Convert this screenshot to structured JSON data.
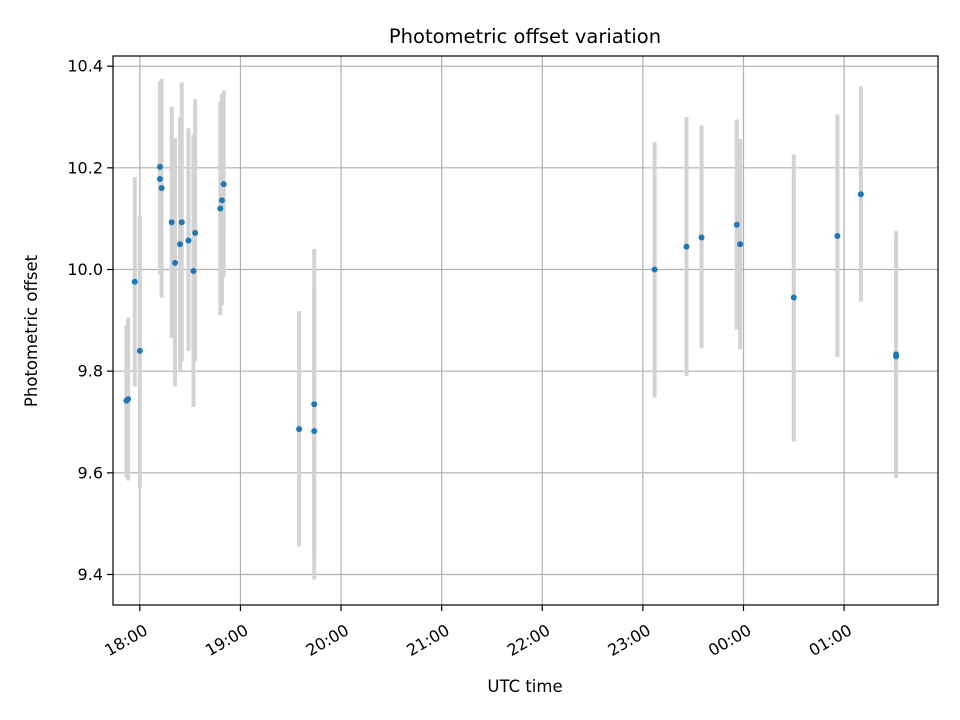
{
  "chart_data": {
    "type": "scatter",
    "title": "Photometric offset variation",
    "xlabel": "UTC time",
    "ylabel": "Photometric offset",
    "x_axis": {
      "kind": "time",
      "min": "17:44",
      "max": "01:56",
      "tick_labels": [
        "18:00",
        "19:00",
        "20:00",
        "21:00",
        "22:00",
        "23:00",
        "00:00",
        "01:00"
      ],
      "tick_label_rotation": "30 degrees"
    },
    "y_axis": {
      "min": 9.34,
      "max": 10.42,
      "ticks": [
        9.4,
        9.6,
        9.8,
        10.0,
        10.2,
        10.4
      ],
      "tick_labels": [
        "9.4",
        "9.6",
        "9.8",
        "10.0",
        "10.2",
        "10.4"
      ]
    },
    "grid": true,
    "legend": "none",
    "colors": {
      "point": "#1f77b4",
      "errorbar": "#d3d3d3",
      "grid": "#b0b0b0",
      "axis": "#000000"
    },
    "points": [
      {
        "x": "17:52",
        "y": 9.742,
        "err_low": 9.59,
        "err_high": 9.89
      },
      {
        "x": "17:53",
        "y": 9.745,
        "err_low": 9.585,
        "err_high": 9.905
      },
      {
        "x": "17:57",
        "y": 9.976,
        "err_low": 9.77,
        "err_high": 10.182
      },
      {
        "x": "18:00",
        "y": 9.84,
        "err_low": 9.57,
        "err_high": 10.105
      },
      {
        "x": "18:12",
        "y": 10.202,
        "err_low": 10.03,
        "err_high": 10.37
      },
      {
        "x": "18:12",
        "y": 10.178,
        "err_low": 9.99,
        "err_high": 10.37
      },
      {
        "x": "18:13",
        "y": 10.16,
        "err_low": 9.945,
        "err_high": 10.375
      },
      {
        "x": "18:19",
        "y": 10.093,
        "err_low": 9.865,
        "err_high": 10.32
      },
      {
        "x": "18:21",
        "y": 10.013,
        "err_low": 9.77,
        "err_high": 10.258
      },
      {
        "x": "18:24",
        "y": 10.05,
        "err_low": 9.8,
        "err_high": 10.3
      },
      {
        "x": "18:25",
        "y": 10.093,
        "err_low": 9.82,
        "err_high": 10.368
      },
      {
        "x": "18:29",
        "y": 10.057,
        "err_low": 9.84,
        "err_high": 10.278
      },
      {
        "x": "18:32",
        "y": 9.997,
        "err_low": 9.73,
        "err_high": 10.265
      },
      {
        "x": "18:33",
        "y": 10.072,
        "err_low": 9.82,
        "err_high": 10.335
      },
      {
        "x": "18:48",
        "y": 10.12,
        "err_low": 9.91,
        "err_high": 10.33
      },
      {
        "x": "18:49",
        "y": 10.136,
        "err_low": 9.93,
        "err_high": 10.345
      },
      {
        "x": "18:50",
        "y": 10.168,
        "err_low": 9.985,
        "err_high": 10.352
      },
      {
        "x": "19:35",
        "y": 9.686,
        "err_low": 9.455,
        "err_high": 9.918
      },
      {
        "x": "19:44",
        "y": 9.735,
        "err_low": 9.43,
        "err_high": 10.04
      },
      {
        "x": "19:44",
        "y": 9.682,
        "err_low": 9.39,
        "err_high": 9.97
      },
      {
        "x": "23:07",
        "y": 10.0,
        "err_low": 9.748,
        "err_high": 10.25
      },
      {
        "x": "23:26",
        "y": 10.045,
        "err_low": 9.79,
        "err_high": 10.3
      },
      {
        "x": "23:35",
        "y": 10.063,
        "err_low": 9.845,
        "err_high": 10.283
      },
      {
        "x": "23:56",
        "y": 10.088,
        "err_low": 9.882,
        "err_high": 10.295
      },
      {
        "x": "23:58",
        "y": 10.05,
        "err_low": 9.843,
        "err_high": 10.257
      },
      {
        "x": "00:30",
        "y": 9.945,
        "err_low": 9.662,
        "err_high": 10.226
      },
      {
        "x": "00:56",
        "y": 10.066,
        "err_low": 9.828,
        "err_high": 10.305
      },
      {
        "x": "01:10",
        "y": 10.148,
        "err_low": 9.937,
        "err_high": 10.36
      },
      {
        "x": "01:31",
        "y": 9.833,
        "err_low": 9.59,
        "err_high": 10.076
      },
      {
        "x": "01:31",
        "y": 9.829,
        "err_low": 9.59,
        "err_high": 10.07
      }
    ]
  }
}
